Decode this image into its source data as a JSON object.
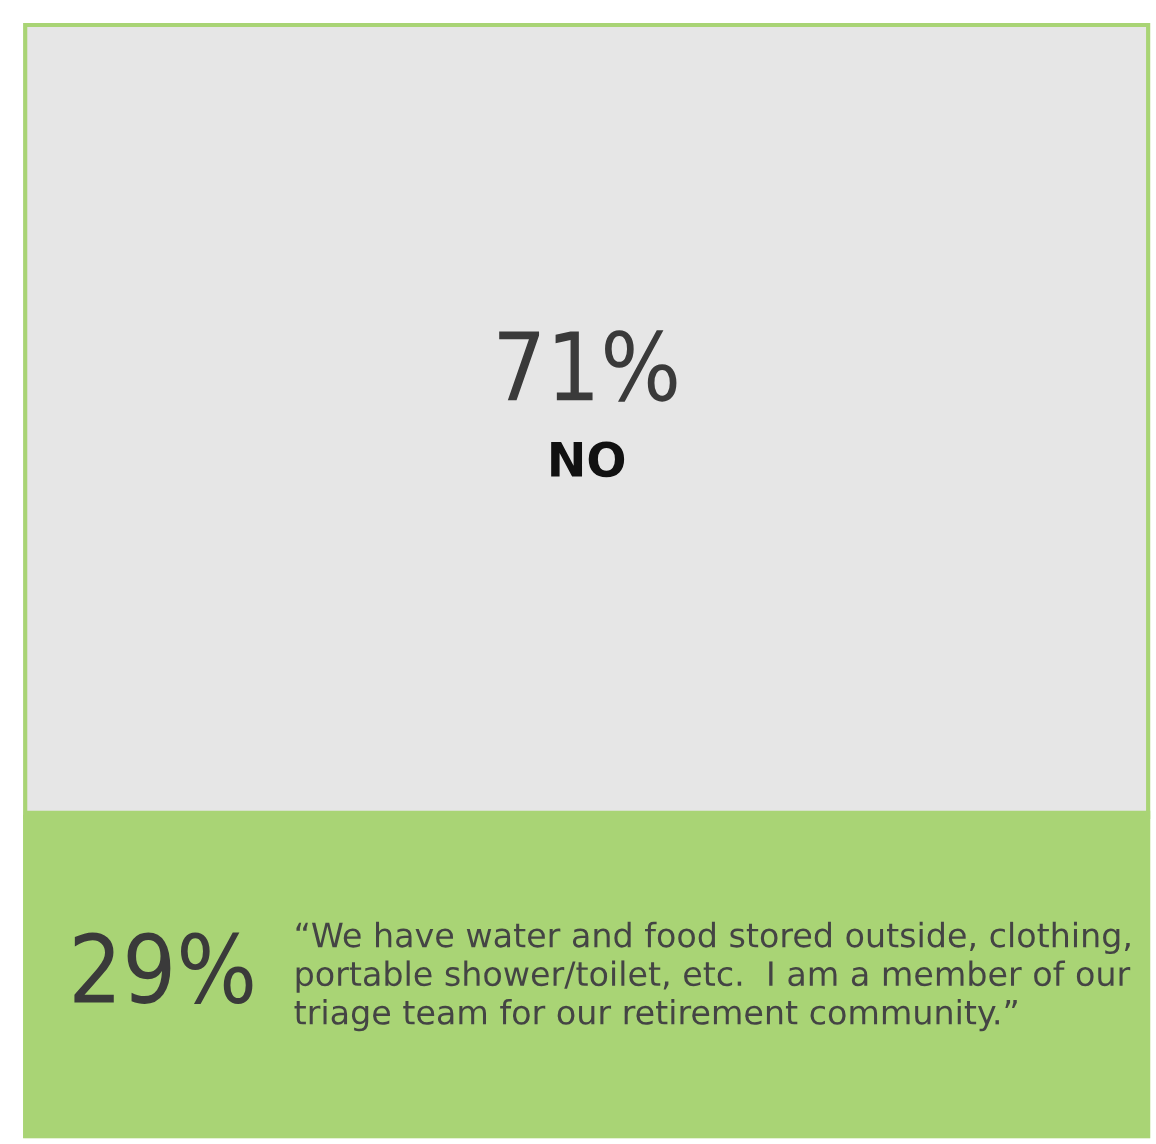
{
  "chart_data": {
    "type": "bar",
    "stacked": true,
    "categories": [
      null
    ],
    "series": [
      {
        "color": "#a9d475",
        "values": [
          29
        ],
        "value_labels": [
          "29%"
        ]
      },
      {
        "name": "NO",
        "color": "#e6e6e6",
        "values": [
          71
        ],
        "value_labels": [
          "71%"
        ]
      }
    ],
    "ylim": [
      0,
      100
    ],
    "tick_labels": false,
    "annotations": [
      "“We have water and food stored outside, clothing, portable shower/toilet, etc.  I am a member of our triage team for our retirement community.”"
    ]
  }
}
